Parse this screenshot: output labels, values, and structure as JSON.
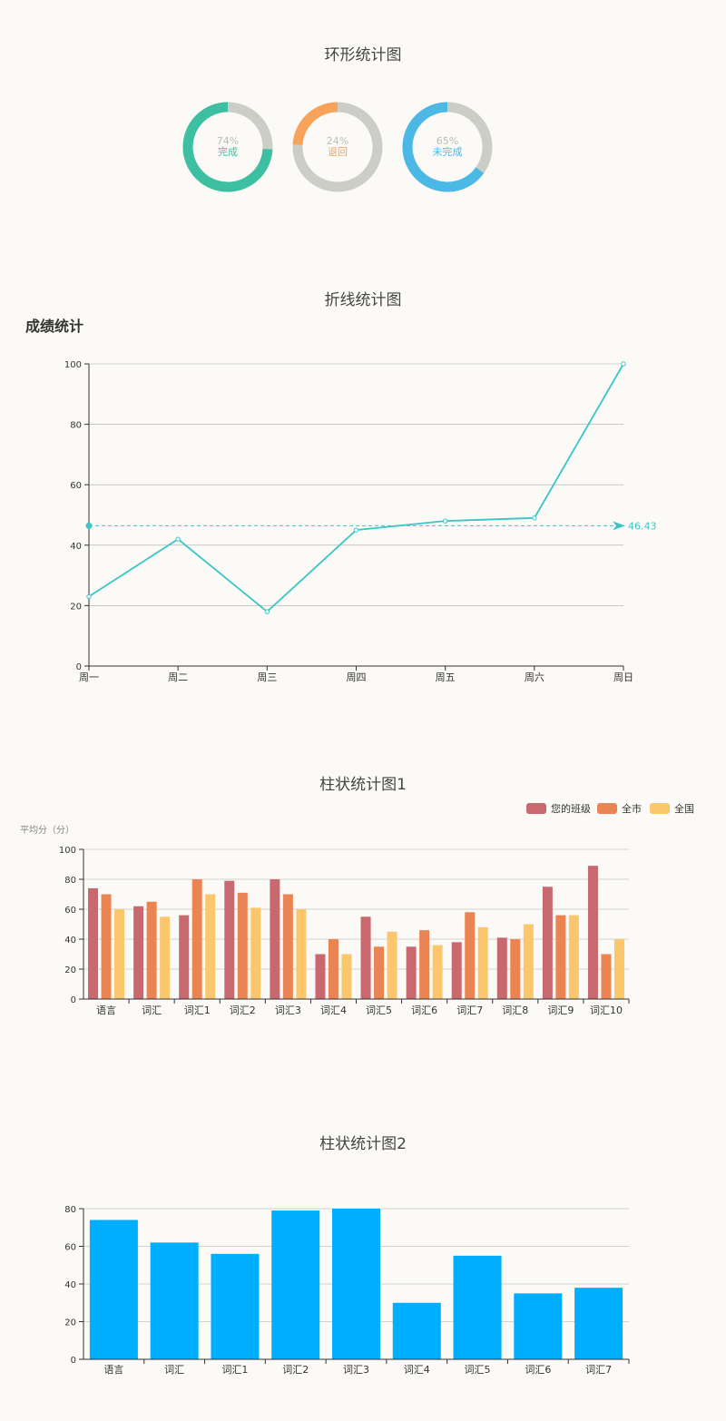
{
  "sections": {
    "donut_title": "环形统计图",
    "line_title": "折线统计图",
    "bar1_title": "柱状统计图1",
    "bar2_title": "柱状统计图2"
  },
  "colors": {
    "donut_complete": "#3dbfa2",
    "donut_return": "#f7a35c",
    "donut_incomplete": "#4bb8e6",
    "donut_track": "#cdcdc8",
    "line": "#3bc5c8",
    "class": "#c9686f",
    "city": "#ea8553",
    "nation": "#fbc66c",
    "bar2": "#00aeff"
  },
  "chart_data": [
    {
      "type": "pie",
      "variant": "donut",
      "slices": [
        {
          "label": "完成",
          "value": 74,
          "percent_text": "74%"
        },
        {
          "label": "退回",
          "value": 24,
          "percent_text": "24%"
        },
        {
          "label": "未完成",
          "value": 65,
          "percent_text": "65%"
        }
      ]
    },
    {
      "type": "line",
      "title": "成绩统计",
      "categories": [
        "周一",
        "周二",
        "周三",
        "周四",
        "周五",
        "周六",
        "周日"
      ],
      "values": [
        23,
        42,
        18,
        45,
        48,
        49,
        100
      ],
      "average": 46.43,
      "average_label": "46.43",
      "ylim": [
        0,
        100
      ],
      "yticks": [
        0,
        20,
        40,
        60,
        80,
        100
      ],
      "grid": true
    },
    {
      "type": "bar",
      "ylabel": "平均分（分）",
      "ylim": [
        0,
        100
      ],
      "yticks": [
        0,
        20,
        40,
        60,
        80,
        100
      ],
      "legend_position": "top-right",
      "categories": [
        "语言",
        "词汇",
        "词汇1",
        "词汇2",
        "词汇3",
        "词汇4",
        "词汇5",
        "词汇6",
        "词汇7",
        "词汇8",
        "词汇9",
        "词汇10"
      ],
      "series": [
        {
          "name": "您的班级",
          "values": [
            74,
            62,
            56,
            79,
            80,
            30,
            55,
            35,
            38,
            41,
            75,
            89
          ]
        },
        {
          "name": "全市",
          "values": [
            70,
            65,
            80,
            71,
            70,
            40,
            35,
            46,
            58,
            40,
            56,
            30
          ]
        },
        {
          "name": "全国",
          "values": [
            60,
            55,
            70,
            61,
            60,
            30,
            45,
            36,
            48,
            50,
            56,
            40
          ]
        }
      ],
      "grid": true
    },
    {
      "type": "bar",
      "ylim": [
        0,
        80
      ],
      "yticks": [
        0,
        20,
        40,
        60,
        80
      ],
      "categories": [
        "语言",
        "词汇",
        "词汇1",
        "词汇2",
        "词汇3",
        "词汇4",
        "词汇5",
        "词汇6",
        "词汇7"
      ],
      "values": [
        74,
        62,
        56,
        79,
        80,
        30,
        55,
        35,
        38
      ],
      "grid": true
    }
  ]
}
